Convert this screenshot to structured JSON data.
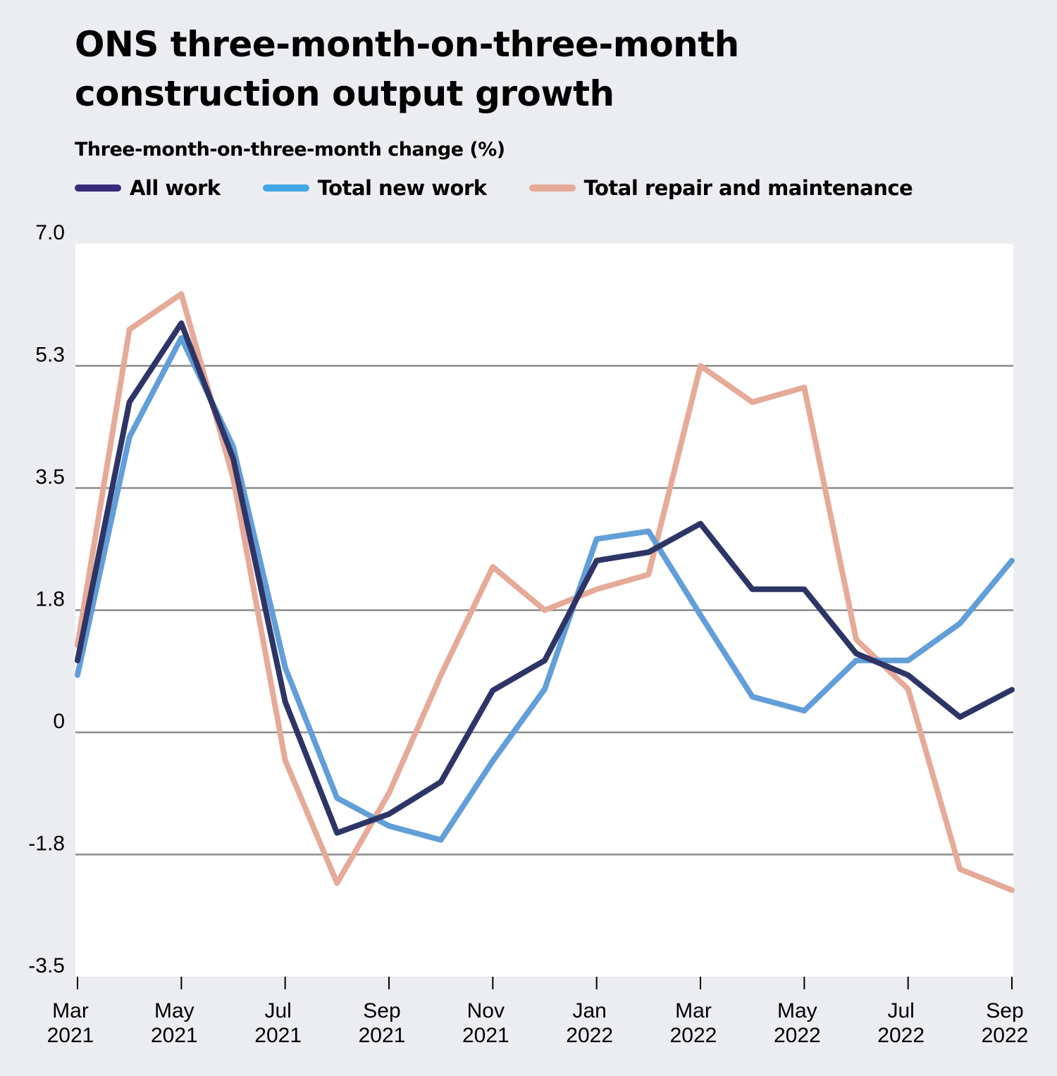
{
  "title_lines": [
    "ONS three-month-on-three-month",
    "construction output growth"
  ],
  "chart_data": {
    "type": "line",
    "title": "ONS three-month-on-three-month construction output growth",
    "ylabel": "Three-month-on-three-month change (%)",
    "xlabel": "",
    "x": [
      "Mar 2021",
      "Apr 2021",
      "May 2021",
      "Jun 2021",
      "Jul 2021",
      "Aug 2021",
      "Sep 2021",
      "Oct 2021",
      "Nov 2021",
      "Dec 2021",
      "Jan 2022",
      "Feb 2022",
      "Mar 2022",
      "Apr 2022",
      "May 2022",
      "Jun 2022",
      "Jul 2022",
      "Aug 2022",
      "Sep 2022"
    ],
    "x_tick_labels": [
      {
        "index": 0,
        "month": "Mar",
        "year": "2021"
      },
      {
        "index": 2,
        "month": "May",
        "year": "2021"
      },
      {
        "index": 4,
        "month": "Jul",
        "year": "2021"
      },
      {
        "index": 6,
        "month": "Sep",
        "year": "2021"
      },
      {
        "index": 8,
        "month": "Nov",
        "year": "2021"
      },
      {
        "index": 10,
        "month": "Jan",
        "year": "2022"
      },
      {
        "index": 12,
        "month": "Mar",
        "year": "2022"
      },
      {
        "index": 14,
        "month": "May",
        "year": "2022"
      },
      {
        "index": 16,
        "month": "Jul",
        "year": "2022"
      },
      {
        "index": 18,
        "month": "Sep",
        "year": "2022"
      }
    ],
    "ylim": [
      -3.5,
      7.0
    ],
    "y_ticks": [
      -3.5,
      -1.75,
      0,
      1.75,
      3.5,
      5.25,
      7.0
    ],
    "y_tick_labels": [
      "-3.5",
      "-1.8",
      "0",
      "1.8",
      "3.5",
      "5.3",
      "7.0"
    ],
    "grid": true,
    "legend_position": "top-left",
    "series": [
      {
        "name": "All work",
        "color": "#2e3566",
        "legend_color": "#382d7a",
        "values": [
          1.03,
          4.73,
          5.86,
          3.92,
          0.44,
          -1.44,
          -1.17,
          -0.71,
          0.6,
          1.03,
          2.46,
          2.58,
          2.99,
          2.05,
          2.05,
          1.13,
          0.82,
          0.22,
          0.61
        ]
      },
      {
        "name": "Total new work",
        "color": "#629ed8",
        "legend_color": "#43a6e6",
        "values": [
          0.82,
          4.23,
          5.65,
          4.09,
          0.93,
          -0.94,
          -1.34,
          -1.54,
          -0.41,
          0.62,
          2.77,
          2.88,
          1.68,
          0.51,
          0.31,
          1.03,
          1.03,
          1.56,
          2.46
        ]
      },
      {
        "name": "Total repair and maintenance",
        "color": "#e6aa98",
        "legend_color": "#e6aa98",
        "values": [
          1.25,
          5.77,
          6.28,
          3.64,
          -0.4,
          -2.16,
          -0.87,
          0.82,
          2.37,
          1.75,
          2.05,
          2.26,
          5.25,
          4.73,
          4.94,
          1.33,
          0.62,
          -1.96,
          -2.26
        ]
      }
    ]
  }
}
